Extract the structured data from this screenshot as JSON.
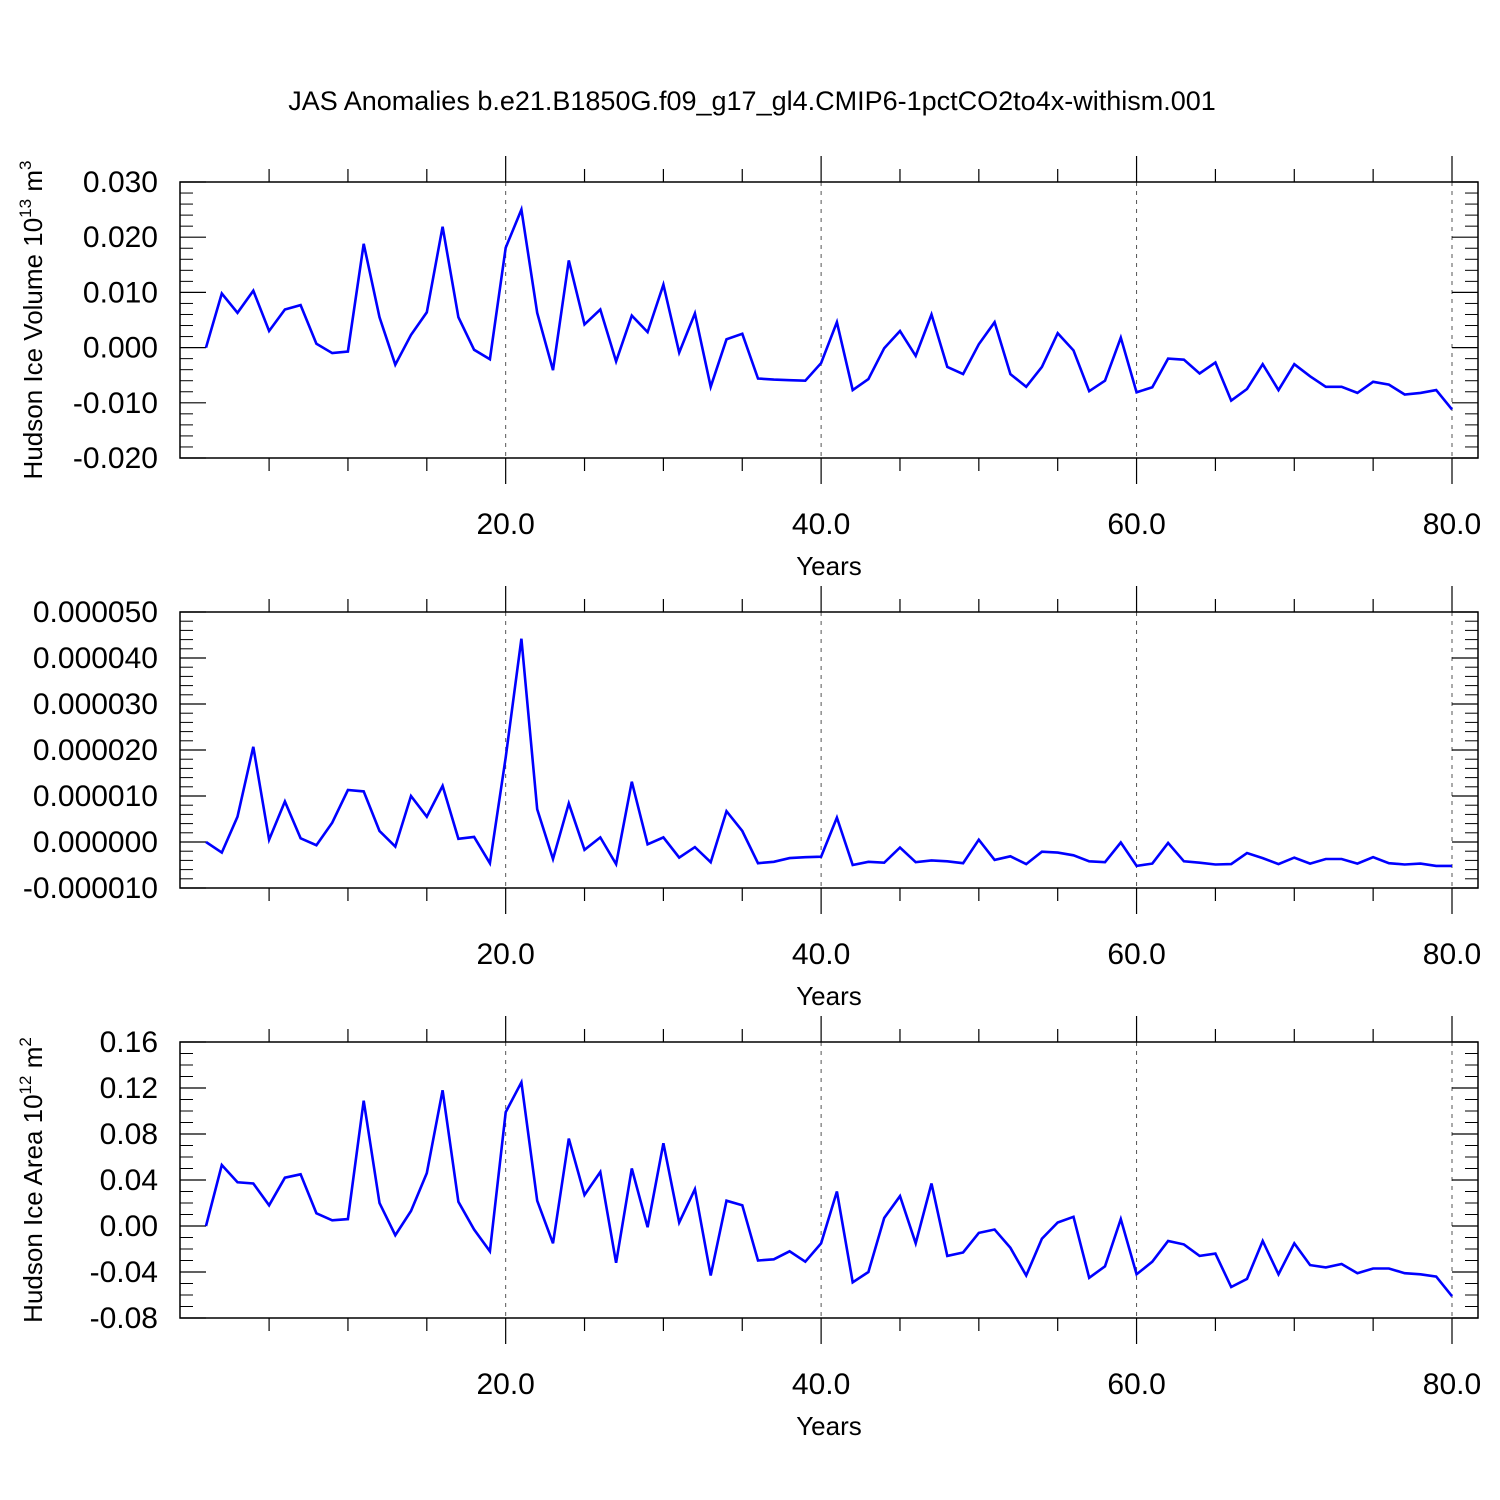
{
  "figure": {
    "title": "JAS Anomalies b.e21.B1850G.f09_g17_gl4.CMIP6-1pctCO2to4x-withism.001"
  },
  "chart_data": [
    {
      "type": "line",
      "title": "JAS Anomalies b.e21.B1850G.f09_g17_gl4.CMIP6-1pctCO2to4x-withism.001",
      "xlabel": "Years",
      "ylabel": {
        "text": "Hudson Ice Volume 10",
        "sup": "13",
        "unit": " m",
        "unit_sup": "3"
      },
      "xlim": [
        1,
        80
      ],
      "ylim": [
        -0.02,
        0.03
      ],
      "xticks": [
        20,
        40,
        60,
        80
      ],
      "xtick_labels": [
        "20.0",
        "40.0",
        "60.0",
        "80.0"
      ],
      "yticks": [
        -0.02,
        -0.01,
        0.0,
        0.01,
        0.02,
        0.03
      ],
      "ytick_labels": [
        "-0.020",
        "-0.010",
        "0.000",
        "0.010",
        "0.020",
        "0.030"
      ],
      "grid": "dashed vertical at major x ticks",
      "line_color": "#0000ff",
      "x": [
        1,
        2,
        3,
        4,
        5,
        6,
        7,
        8,
        9,
        10,
        11,
        12,
        13,
        14,
        15,
        16,
        17,
        18,
        19,
        20,
        21,
        22,
        23,
        24,
        25,
        26,
        27,
        28,
        29,
        30,
        31,
        32,
        33,
        34,
        35,
        36,
        37,
        38,
        39,
        40,
        41,
        42,
        43,
        44,
        45,
        46,
        47,
        48,
        49,
        50,
        51,
        52,
        53,
        54,
        55,
        56,
        57,
        58,
        59,
        60,
        61,
        62,
        63,
        64,
        65,
        66,
        67,
        68,
        69,
        70,
        71,
        72,
        73,
        74,
        75,
        76,
        77,
        78,
        79,
        80
      ],
      "values": [
        0.0,
        0.0098,
        0.0063,
        0.0103,
        0.003,
        0.0069,
        0.0077,
        0.0007,
        -0.001,
        -0.0007,
        0.0188,
        0.0055,
        -0.0031,
        0.0023,
        0.0064,
        0.0219,
        0.0055,
        -0.0004,
        -0.0021,
        0.0181,
        0.025,
        0.0063,
        -0.0041,
        0.0158,
        0.0042,
        0.0069,
        -0.0025,
        0.0058,
        0.0028,
        0.0114,
        -0.0009,
        0.0062,
        -0.0071,
        0.0015,
        0.0025,
        -0.0056,
        -0.0058,
        -0.0059,
        -0.006,
        -0.0028,
        0.0046,
        -0.0077,
        -0.0057,
        -0.0001,
        0.003,
        -0.0015,
        0.006,
        -0.0035,
        -0.0048,
        0.0006,
        0.0046,
        -0.0048,
        -0.0071,
        -0.0035,
        0.0026,
        -0.0005,
        -0.0079,
        -0.006,
        0.0018,
        -0.0081,
        -0.0072,
        -0.002,
        -0.0022,
        -0.0047,
        -0.0027,
        -0.0096,
        -0.0075,
        -0.003,
        -0.0077,
        -0.003,
        -0.0052,
        -0.0071,
        -0.0071,
        -0.0082,
        -0.0062,
        -0.0067,
        -0.0085,
        -0.0082,
        -0.0077,
        -0.0112
      ]
    },
    {
      "type": "line",
      "xlabel": "Years",
      "ylabel": "",
      "xlim": [
        1,
        80
      ],
      "ylim": [
        -1e-05,
        5e-05
      ],
      "xticks": [
        20,
        40,
        60,
        80
      ],
      "xtick_labels": [
        "20.0",
        "40.0",
        "60.0",
        "80.0"
      ],
      "yticks": [
        -1e-05,
        0.0,
        1e-05,
        2e-05,
        3e-05,
        4e-05,
        5e-05
      ],
      "ytick_labels": [
        "-0.000010",
        "0.000000",
        "0.000010",
        "0.000020",
        "0.000030",
        "0.000040",
        "0.000050"
      ],
      "grid": "dashed vertical at major x ticks",
      "line_color": "#0000ff",
      "x": [
        1,
        2,
        3,
        4,
        5,
        6,
        7,
        8,
        9,
        10,
        11,
        12,
        13,
        14,
        15,
        16,
        17,
        18,
        19,
        20,
        21,
        22,
        23,
        24,
        25,
        26,
        27,
        28,
        29,
        30,
        31,
        32,
        33,
        34,
        35,
        36,
        37,
        38,
        39,
        40,
        41,
        42,
        43,
        44,
        45,
        46,
        47,
        48,
        49,
        50,
        51,
        52,
        53,
        54,
        55,
        56,
        57,
        58,
        59,
        60,
        61,
        62,
        63,
        64,
        65,
        66,
        67,
        68,
        69,
        70,
        71,
        72,
        73,
        74,
        75,
        76,
        77,
        78,
        79,
        80
      ],
      "values": [
        0.0,
        -2.3e-06,
        5.5e-06,
        2.07e-05,
        5e-07,
        8.8e-06,
        8e-07,
        -7e-07,
        4.2e-06,
        1.13e-05,
        1.1e-05,
        2.4e-06,
        -1e-06,
        1e-05,
        5.5e-06,
        1.22e-05,
        7e-07,
        1.1e-06,
        -4.6e-06,
        1.84e-05,
        4.42e-05,
        7.1e-06,
        -3.7e-06,
        8.4e-06,
        -1.7e-06,
        1e-06,
        -4.8e-06,
        1.31e-05,
        -5e-07,
        1e-06,
        -3.4e-06,
        -1.1e-06,
        -4.4e-06,
        6.7e-06,
        2.4e-06,
        -4.6e-06,
        -4.3e-06,
        -3.5e-06,
        -3.3e-06,
        -3.2e-06,
        5.3e-06,
        -5e-06,
        -4.3e-06,
        -4.5e-06,
        -1.2e-06,
        -4.4e-06,
        -4e-06,
        -4.2e-06,
        -4.6e-06,
        5e-07,
        -3.9e-06,
        -3.1e-06,
        -4.8e-06,
        -2.1e-06,
        -2.3e-06,
        -2.9e-06,
        -4.2e-06,
        -4.4e-06,
        -1e-07,
        -5.2e-06,
        -4.7e-06,
        -2e-07,
        -4.2e-06,
        -4.5e-06,
        -4.9e-06,
        -4.8e-06,
        -2.4e-06,
        -3.5e-06,
        -4.8e-06,
        -3.4e-06,
        -4.7e-06,
        -3.7e-06,
        -3.7e-06,
        -4.7e-06,
        -3.3e-06,
        -4.6e-06,
        -4.9e-06,
        -4.7e-06,
        -5.2e-06,
        -5.2e-06
      ]
    },
    {
      "type": "line",
      "xlabel": "Years",
      "ylabel": {
        "text": "Hudson Ice Area 10",
        "sup": "12",
        "unit": " m",
        "unit_sup": "2"
      },
      "xlim": [
        1,
        80
      ],
      "ylim": [
        -0.08,
        0.16
      ],
      "xticks": [
        20,
        40,
        60,
        80
      ],
      "xtick_labels": [
        "20.0",
        "40.0",
        "60.0",
        "80.0"
      ],
      "yticks": [
        -0.08,
        -0.04,
        0.0,
        0.04,
        0.08,
        0.12,
        0.16
      ],
      "ytick_labels": [
        "-0.08",
        "-0.04",
        "0.00",
        "0.04",
        "0.08",
        "0.12",
        "0.16"
      ],
      "grid": "dashed vertical at major x ticks",
      "line_color": "#0000ff",
      "x": [
        1,
        2,
        3,
        4,
        5,
        6,
        7,
        8,
        9,
        10,
        11,
        12,
        13,
        14,
        15,
        16,
        17,
        18,
        19,
        20,
        21,
        22,
        23,
        24,
        25,
        26,
        27,
        28,
        29,
        30,
        31,
        32,
        33,
        34,
        35,
        36,
        37,
        38,
        39,
        40,
        41,
        42,
        43,
        44,
        45,
        46,
        47,
        48,
        49,
        50,
        51,
        52,
        53,
        54,
        55,
        56,
        57,
        58,
        59,
        60,
        61,
        62,
        63,
        64,
        65,
        66,
        67,
        68,
        69,
        70,
        71,
        72,
        73,
        74,
        75,
        76,
        77,
        78,
        79,
        80
      ],
      "values": [
        0.0,
        0.053,
        0.038,
        0.037,
        0.018,
        0.042,
        0.045,
        0.011,
        0.005,
        0.006,
        0.109,
        0.02,
        -0.008,
        0.013,
        0.046,
        0.118,
        0.021,
        -0.003,
        -0.022,
        0.099,
        0.125,
        0.022,
        -0.015,
        0.076,
        0.027,
        0.047,
        -0.032,
        0.05,
        -0.001,
        0.072,
        0.003,
        0.032,
        -0.043,
        0.022,
        0.018,
        -0.03,
        -0.029,
        -0.022,
        -0.031,
        -0.015,
        0.03,
        -0.049,
        -0.04,
        0.007,
        0.026,
        -0.015,
        0.037,
        -0.026,
        -0.023,
        -0.006,
        -0.003,
        -0.019,
        -0.043,
        -0.011,
        0.003,
        0.008,
        -0.045,
        -0.035,
        0.006,
        -0.042,
        -0.031,
        -0.013,
        -0.016,
        -0.026,
        -0.024,
        -0.053,
        -0.046,
        -0.013,
        -0.042,
        -0.015,
        -0.034,
        -0.036,
        -0.033,
        -0.041,
        -0.037,
        -0.037,
        -0.041,
        -0.042,
        -0.044,
        -0.061
      ]
    }
  ]
}
